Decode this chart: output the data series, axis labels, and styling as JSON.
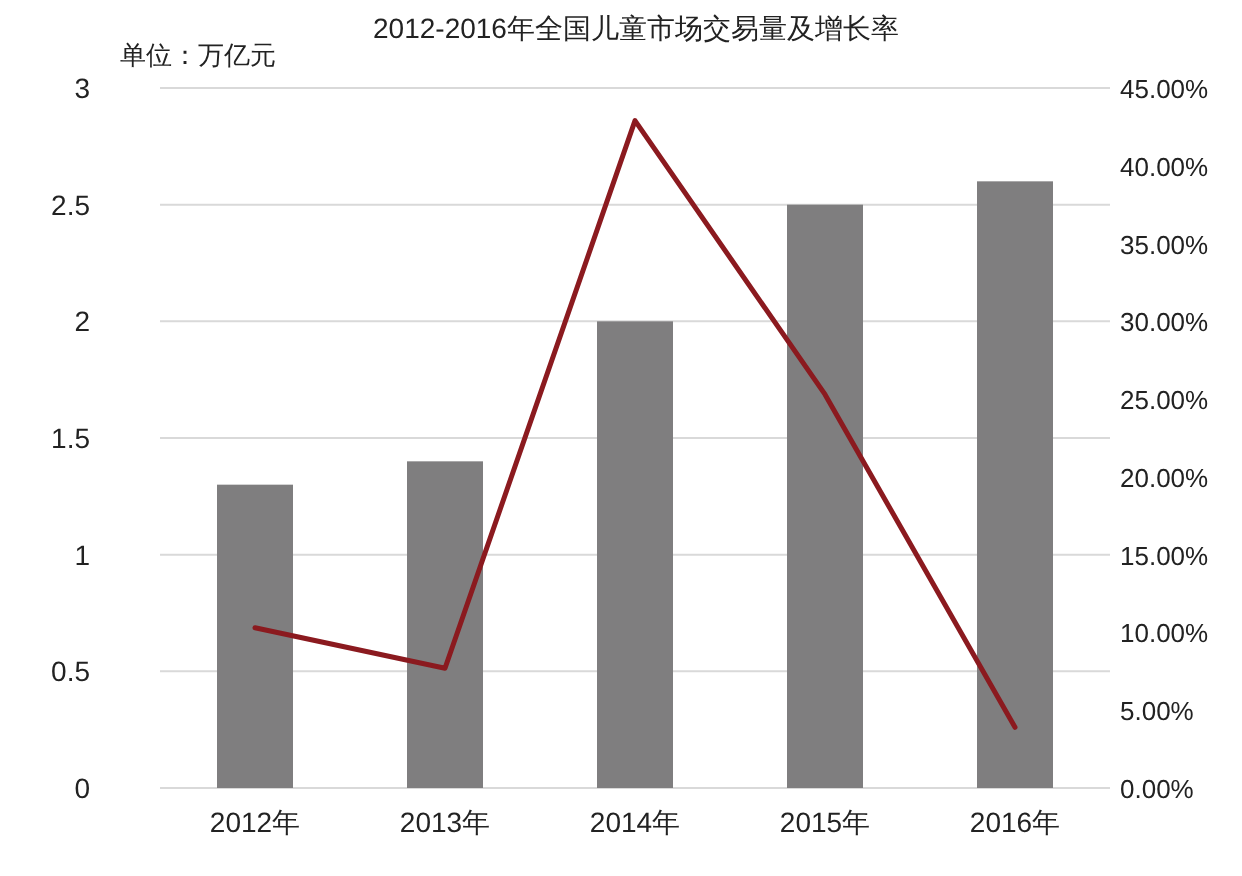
{
  "chart_data": {
    "type": "bar",
    "title": "2012-2016年全国儿童市场交易量及增长率",
    "annotations": [
      "单位：万亿元"
    ],
    "categories": [
      "2012年",
      "2013年",
      "2014年",
      "2015年",
      "2016年"
    ],
    "series": [
      {
        "color": "#7f7e7f",
        "values": [
          1.3,
          1.4,
          2,
          2.5,
          2.6
        ]
      },
      {
        "type": "line",
        "axis": "y2",
        "color": "#8b1a1f",
        "values": [
          10.3,
          7.7,
          42.9,
          25.3,
          3.9
        ]
      }
    ],
    "ylim": [
      0,
      3
    ],
    "yticks": [
      0,
      0.5,
      1,
      1.5,
      2,
      2.5,
      3
    ],
    "y2lim": [
      0,
      45
    ],
    "y2ticks": [
      {
        "value": 0,
        "label": "0.00%"
      },
      {
        "value": 5,
        "label": "5.00%"
      },
      {
        "value": 10,
        "label": "10.00%"
      },
      {
        "value": 15,
        "label": "15.00%"
      },
      {
        "value": 20,
        "label": "20.00%"
      },
      {
        "value": 25,
        "label": "25.00%"
      },
      {
        "value": 30,
        "label": "30.00%"
      },
      {
        "value": 35,
        "label": "35.00%"
      },
      {
        "value": 40,
        "label": "40.00%"
      },
      {
        "value": 45,
        "label": "45.00%"
      }
    ],
    "grid": "y"
  }
}
